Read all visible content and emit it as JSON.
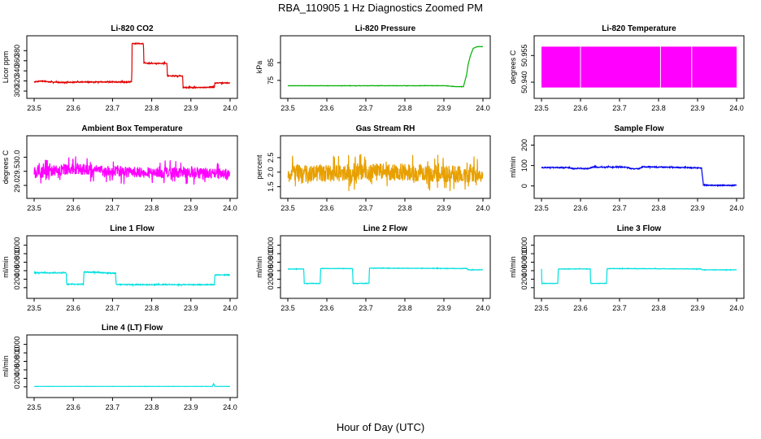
{
  "page": {
    "title": "RBA_110905  1 Hz Diagnostics Zoomed PM",
    "xlabel": "Hour of Day (UTC)"
  },
  "chart_data": [
    {
      "id": "co2",
      "type": "line",
      "title": "Li-820 CO2",
      "ylabel": "Licor ppm",
      "xlim": [
        23.5,
        24.0
      ],
      "ylim": [
        300,
        395
      ],
      "xticks": [
        "23.5",
        "23.6",
        "23.7",
        "23.8",
        "23.9",
        "24.0"
      ],
      "yticks": [
        300,
        320,
        340,
        360,
        380
      ],
      "ytick_labels": [
        "300",
        "320",
        "340",
        "360",
        "380"
      ],
      "color": "#e00000",
      "noise": 1.2,
      "grid": false,
      "series": [
        {
          "x": [
            23.5,
            23.52,
            23.54,
            23.58,
            23.62,
            23.68,
            23.7,
            23.749,
            23.75,
            23.77,
            23.779,
            23.78,
            23.83,
            23.839,
            23.84,
            23.87,
            23.879,
            23.88,
            23.92,
            23.929,
            23.93,
            23.95,
            23.96,
            23.961,
            23.98,
            24.0
          ],
          "y": [
            318,
            320,
            318,
            317,
            318,
            318,
            318,
            318,
            394,
            394,
            394,
            355,
            355,
            355,
            330,
            330,
            330,
            307,
            307,
            307,
            307,
            308,
            308,
            316,
            316,
            316
          ]
        }
      ]
    },
    {
      "id": "pressure",
      "type": "line",
      "title": "Li-820 Pressure",
      "ylabel": "kPa",
      "xlim": [
        23.5,
        24.0
      ],
      "ylim": [
        69,
        96
      ],
      "xticks": [
        "23.5",
        "23.6",
        "23.7",
        "23.8",
        "23.9",
        "24.0"
      ],
      "yticks": [
        75,
        85
      ],
      "ytick_labels": [
        "75",
        "85"
      ],
      "color": "#00b000",
      "noise": 0.1,
      "grid": false,
      "series": [
        {
          "x": [
            23.5,
            23.7,
            23.9,
            23.93,
            23.95,
            23.958,
            23.962,
            23.968,
            23.975,
            23.985,
            24.0
          ],
          "y": [
            72,
            72,
            72,
            71.5,
            71.5,
            78,
            84,
            89,
            93,
            94,
            94
          ]
        }
      ]
    },
    {
      "id": "li820temp",
      "type": "area",
      "title": "Li-820 Temperature",
      "ylabel": "degrees C",
      "xlim": [
        23.5,
        24.0
      ],
      "ylim": [
        50.935,
        50.962
      ],
      "xticks": [
        "23.5",
        "23.6",
        "23.7",
        "23.8",
        "23.9",
        "24.0"
      ],
      "yticks": [
        50.94,
        50.955
      ],
      "ytick_labels": [
        "50.940",
        "50.955"
      ],
      "color": "#ff00ff",
      "grid": false,
      "band": [
        50.937,
        50.96
      ],
      "gaps": [
        23.6,
        23.805,
        23.885
      ]
    },
    {
      "id": "ambient",
      "type": "line",
      "title": "Ambient Box Temperature",
      "ylabel": "degrees C",
      "xlim": [
        23.5,
        24.0
      ],
      "ylim": [
        28.8,
        30.5
      ],
      "xticks": [
        "23.5",
        "23.6",
        "23.7",
        "23.8",
        "23.9",
        "24.0"
      ],
      "yticks": [
        29.0,
        29.5,
        30.0
      ],
      "ytick_labels": [
        "29.0",
        "29.5",
        "30.0"
      ],
      "color": "#ff00ff",
      "noise": 0.28,
      "grid": false,
      "series": [
        {
          "x": [
            23.5,
            23.55,
            23.6,
            23.7,
            23.8,
            23.9,
            24.0
          ],
          "y": [
            29.45,
            29.5,
            29.6,
            29.5,
            29.45,
            29.45,
            29.4
          ]
        }
      ]
    },
    {
      "id": "rh",
      "type": "line",
      "title": "Gas Stream RH",
      "ylabel": "percent",
      "xlim": [
        23.5,
        24.0
      ],
      "ylim": [
        1.35,
        3.0
      ],
      "xticks": [
        "23.5",
        "23.6",
        "23.7",
        "23.8",
        "23.9",
        "24.0"
      ],
      "yticks": [
        1.5,
        2.0,
        2.5
      ],
      "ytick_labels": [
        "1.5",
        "2.0",
        "2.5"
      ],
      "color": "#e8a000",
      "noise": 0.42,
      "grid": false,
      "series": [
        {
          "x": [
            23.5,
            23.6,
            23.7,
            23.8,
            23.9,
            24.0
          ],
          "y": [
            1.95,
            1.95,
            2.0,
            2.0,
            1.95,
            1.9
          ]
        }
      ]
    },
    {
      "id": "sample",
      "type": "line",
      "title": "Sample Flow",
      "ylabel": "ml/min",
      "xlim": [
        23.5,
        24.0
      ],
      "ylim": [
        -25,
        210
      ],
      "xticks": [
        "23.5",
        "23.6",
        "23.7",
        "23.8",
        "23.9",
        "24.0"
      ],
      "yticks": [
        0,
        100,
        200
      ],
      "ytick_labels": [
        "0",
        "100",
        "200"
      ],
      "color": "#0000ee",
      "noise": 3,
      "grid": false,
      "series": [
        {
          "x": [
            23.5,
            23.57,
            23.58,
            23.62,
            23.63,
            23.72,
            23.73,
            23.75,
            23.76,
            23.91,
            23.915,
            23.93,
            24.0
          ],
          "y": [
            90,
            90,
            85,
            85,
            92,
            92,
            84,
            84,
            94,
            88,
            5,
            3,
            3
          ]
        }
      ]
    },
    {
      "id": "line1",
      "type": "line",
      "title": "Line 1 Flow",
      "ylabel": "ml/min",
      "xlim": [
        23.5,
        24.0
      ],
      "ylim": [
        -80,
        1050
      ],
      "xticks": [
        "23.5",
        "23.6",
        "23.7",
        "23.8",
        "23.9",
        "24.0"
      ],
      "yticks": [
        0,
        200,
        400,
        600,
        800,
        1000
      ],
      "ytick_labels": [
        "0",
        "200",
        "400",
        "600",
        "800",
        "1000"
      ],
      "color": "#00e0e0",
      "noise": 12,
      "grid": false,
      "series": [
        {
          "x": [
            23.5,
            23.582,
            23.583,
            23.626,
            23.627,
            23.708,
            23.709,
            23.75,
            23.96,
            23.961,
            24.0
          ],
          "y": [
            350,
            350,
            80,
            80,
            370,
            340,
            80,
            70,
            70,
            300,
            300
          ]
        }
      ]
    },
    {
      "id": "line2",
      "type": "line",
      "title": "Line 2 Flow",
      "ylabel": "ml/min",
      "xlim": [
        23.5,
        24.0
      ],
      "ylim": [
        -80,
        1050
      ],
      "xticks": [
        "23.5",
        "23.6",
        "23.7",
        "23.8",
        "23.9",
        "24.0"
      ],
      "yticks": [
        0,
        200,
        400,
        600,
        800,
        1000
      ],
      "ytick_labels": [
        "0",
        "200",
        "400",
        "600",
        "800",
        "1000"
      ],
      "color": "#00e0e0",
      "noise": 6,
      "grid": false,
      "series": [
        {
          "x": [
            23.5,
            23.541,
            23.542,
            23.583,
            23.584,
            23.666,
            23.667,
            23.708,
            23.709,
            23.96,
            23.961,
            24.0
          ],
          "y": [
            440,
            440,
            100,
            100,
            450,
            450,
            100,
            100,
            460,
            450,
            420,
            420
          ]
        }
      ]
    },
    {
      "id": "line3",
      "type": "line",
      "title": "Line 3 Flow",
      "ylabel": "ml/min",
      "xlim": [
        23.5,
        24.0
      ],
      "ylim": [
        -80,
        1050
      ],
      "xticks": [
        "23.5",
        "23.6",
        "23.7",
        "23.8",
        "23.9",
        "24.0"
      ],
      "yticks": [
        0,
        200,
        400,
        600,
        800,
        1000
      ],
      "ytick_labels": [
        "0",
        "200",
        "400",
        "600",
        "800",
        "1000"
      ],
      "color": "#00e0e0",
      "noise": 6,
      "grid": false,
      "series": [
        {
          "x": [
            23.5,
            23.501,
            23.542,
            23.543,
            23.625,
            23.626,
            23.667,
            23.668,
            23.91,
            23.911,
            24.0
          ],
          "y": [
            440,
            100,
            100,
            440,
            440,
            100,
            100,
            450,
            440,
            420,
            420
          ]
        }
      ]
    },
    {
      "id": "line4",
      "type": "line",
      "title": "Line 4 (LT) Flow",
      "ylabel": "ml/min",
      "xlim": [
        23.5,
        24.0
      ],
      "ylim": [
        -80,
        1050
      ],
      "xticks": [
        "23.5",
        "23.6",
        "23.7",
        "23.8",
        "23.9",
        "24.0"
      ],
      "yticks": [
        0,
        200,
        400,
        600,
        800,
        1000
      ],
      "ytick_labels": [
        "0",
        "200",
        "400",
        "600",
        "800",
        "1000"
      ],
      "color": "#00e0e0",
      "noise": 2,
      "grid": false,
      "series": [
        {
          "x": [
            23.5,
            23.955,
            23.958,
            23.961,
            23.965,
            24.0
          ],
          "y": [
            10,
            10,
            80,
            10,
            10,
            10
          ]
        }
      ]
    }
  ]
}
